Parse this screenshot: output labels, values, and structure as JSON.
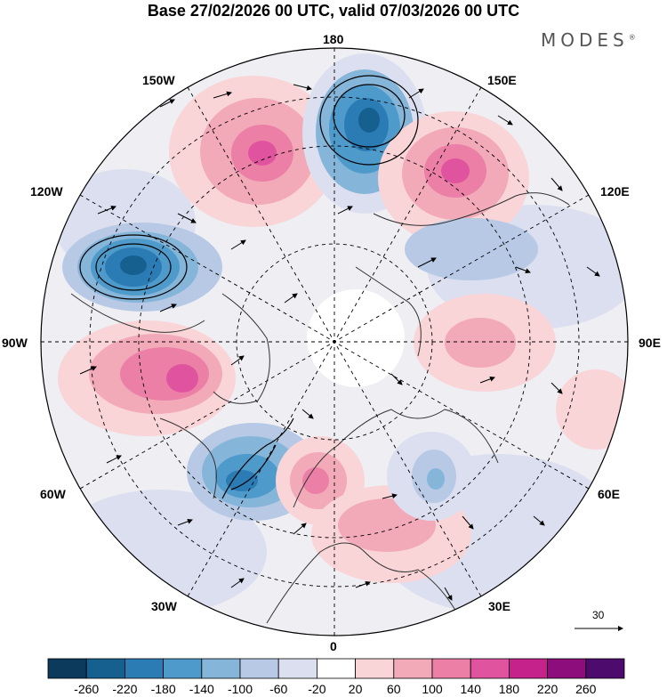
{
  "title": "Base 27/02/2026 00 UTC, valid 07/03/2026 00 UTC",
  "brand": "MODES",
  "brand_mark": "®",
  "longitude_labels": {
    "top": "180",
    "top_right": "150E",
    "upper_right": "120E",
    "right": "90E",
    "lower_right": "60E",
    "bottom_right": "30E",
    "bottom": "0",
    "bottom_left": "30W",
    "lower_left": "60W",
    "left": "90W",
    "upper_left": "120W",
    "top_left": "150W"
  },
  "vector_scale": {
    "value": "30"
  },
  "colorbar": {
    "ticks": [
      "-260",
      "-220",
      "-180",
      "-140",
      "-100",
      "-60",
      "-20",
      "20",
      "60",
      "100",
      "140",
      "180",
      "220",
      "260"
    ],
    "colors": [
      "#0b3a5c",
      "#15608f",
      "#2b7bb5",
      "#4d9acb",
      "#86b5da",
      "#b7c9e4",
      "#dcdff0",
      "#ffffff",
      "#f9d5d8",
      "#f2a9b8",
      "#eb7fa5",
      "#e0549f",
      "#c6228c",
      "#8e0d7c",
      "#4e0b6e"
    ]
  }
}
